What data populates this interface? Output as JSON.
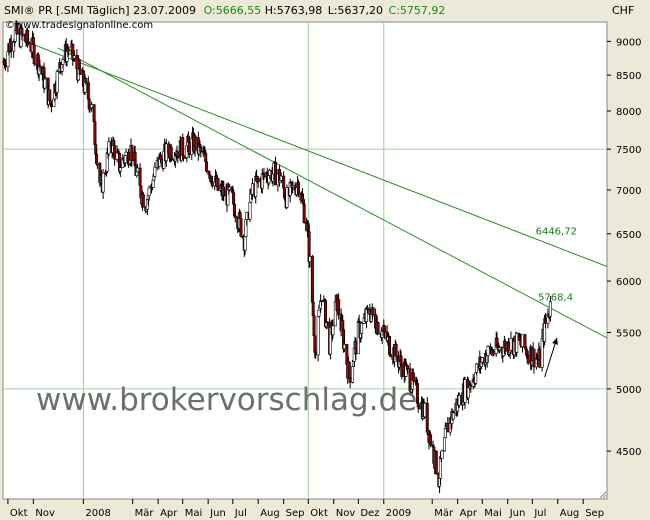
{
  "chart_data": {
    "type": "candlestick",
    "title": "SMI® PR [.SMI  Täglich] 23.07.2009",
    "header": {
      "instrument": "SMI® PR [.SMI  Täglich] 23.07.2009",
      "open": "O:5666,55",
      "high": "H:5763,98",
      "low": "L:5637,20",
      "close": "C:5757,92",
      "source": "©www.tradesignalonline.com"
    },
    "currency": "CHF",
    "y_scale": "log",
    "ylim": [
      4150,
      9300
    ],
    "y_ticks": [
      {
        "v": 9000,
        "label": "9000"
      },
      {
        "v": 8500,
        "label": "8500"
      },
      {
        "v": 8000,
        "label": "8000"
      },
      {
        "v": 7500,
        "label": "7500"
      },
      {
        "v": 7000,
        "label": "7000"
      },
      {
        "v": 6500,
        "label": "6500"
      },
      {
        "v": 6000,
        "label": "6000"
      },
      {
        "v": 5500,
        "label": "5500"
      },
      {
        "v": 5000,
        "label": "5000"
      },
      {
        "v": 4500,
        "label": "4500"
      }
    ],
    "x_range": [
      "2007-09-25",
      "2009-09-30"
    ],
    "x_ticks": [
      {
        "d": "2007-10-01",
        "label": "Okt"
      },
      {
        "d": "2007-11-01",
        "label": "Nov"
      },
      {
        "d": "2008-01-01",
        "label": "2008"
      },
      {
        "d": "2008-03-01",
        "label": "Mär"
      },
      {
        "d": "2008-04-01",
        "label": "Apr"
      },
      {
        "d": "2008-05-01",
        "label": "Mai"
      },
      {
        "d": "2008-06-01",
        "label": "Jun"
      },
      {
        "d": "2008-07-01",
        "label": "Jul"
      },
      {
        "d": "2008-08-01",
        "label": "Aug"
      },
      {
        "d": "2008-09-01",
        "label": "Sep"
      },
      {
        "d": "2008-10-01",
        "label": "Okt"
      },
      {
        "d": "2008-11-01",
        "label": "Nov"
      },
      {
        "d": "2008-12-01",
        "label": "Dez"
      },
      {
        "d": "2009-01-01",
        "label": "2009"
      },
      {
        "d": "2009-03-01",
        "label": "Mär"
      },
      {
        "d": "2009-04-01",
        "label": "Apr"
      },
      {
        "d": "2009-05-01",
        "label": "Mai"
      },
      {
        "d": "2009-06-01",
        "label": "Jun"
      },
      {
        "d": "2009-07-01",
        "label": "Jul"
      },
      {
        "d": "2009-08-01",
        "label": "Aug"
      },
      {
        "d": "2009-09-01",
        "label": "Sep"
      }
    ],
    "v_gridlines": [
      "2008-01-01",
      "2008-10-01",
      "2009-01-01"
    ],
    "h_gridlines": [
      7500,
      5000
    ],
    "price_path": [
      [
        "2007-09-26",
        8700
      ],
      [
        "2007-10-08",
        9120
      ],
      [
        "2007-10-20",
        9050
      ],
      [
        "2007-10-29",
        8950
      ],
      [
        "2007-11-10",
        8600
      ],
      [
        "2007-11-22",
        8100
      ],
      [
        "2007-12-05",
        8700
      ],
      [
        "2007-12-14",
        8900
      ],
      [
        "2007-12-28",
        8500
      ],
      [
        "2008-01-10",
        8100
      ],
      [
        "2008-01-22",
        7000
      ],
      [
        "2008-02-04",
        7600
      ],
      [
        "2008-02-14",
        7300
      ],
      [
        "2008-02-28",
        7500
      ],
      [
        "2008-03-10",
        7000
      ],
      [
        "2008-03-17",
        6850
      ],
      [
        "2008-04-02",
        7350
      ],
      [
        "2008-04-16",
        7500
      ],
      [
        "2008-05-02",
        7500
      ],
      [
        "2008-05-15",
        7580
      ],
      [
        "2008-05-29",
        7350
      ],
      [
        "2008-06-13",
        7000
      ],
      [
        "2008-06-30",
        6900
      ],
      [
        "2008-07-15",
        6450
      ],
      [
        "2008-07-25",
        7000
      ],
      [
        "2008-08-12",
        7200
      ],
      [
        "2008-08-25",
        7200
      ],
      [
        "2008-09-05",
        6900
      ],
      [
        "2008-09-19",
        7100
      ],
      [
        "2008-09-30",
        6550
      ],
      [
        "2008-10-10",
        5300
      ],
      [
        "2008-10-17",
        5900
      ],
      [
        "2008-10-27",
        5400
      ],
      [
        "2008-11-05",
        5800
      ],
      [
        "2008-11-20",
        5100
      ],
      [
        "2008-12-01",
        5500
      ],
      [
        "2008-12-15",
        5700
      ],
      [
        "2008-12-31",
        5500
      ],
      [
        "2009-01-15",
        5300
      ],
      [
        "2009-02-01",
        5100
      ],
      [
        "2009-02-20",
        4800
      ],
      [
        "2009-03-09",
        4300
      ],
      [
        "2009-03-20",
        4700
      ],
      [
        "2009-04-06",
        4950
      ],
      [
        "2009-04-20",
        5100
      ],
      [
        "2009-05-05",
        5300
      ],
      [
        "2009-05-20",
        5350
      ],
      [
        "2009-06-05",
        5400
      ],
      [
        "2009-06-15",
        5400
      ],
      [
        "2009-06-30",
        5300
      ],
      [
        "2009-07-10",
        5250
      ],
      [
        "2009-07-16",
        5550
      ],
      [
        "2009-07-23",
        5757.92
      ]
    ],
    "trend_lines": [
      {
        "points": [
          [
            "2007-10-22",
            9000
          ],
          [
            "2009-09-30",
            6150
          ]
        ],
        "label": "6446,72",
        "label_at": [
          "2009-07-05",
          6446.72
        ]
      },
      {
        "points": [
          [
            "2007-12-01",
            8900
          ],
          [
            "2009-09-30",
            5450
          ]
        ],
        "label": "5768,4",
        "label_at": [
          "2009-07-08",
          5768.4
        ]
      }
    ],
    "arrow": {
      "from": [
        "2009-07-16",
        5100
      ],
      "to": [
        "2009-07-31",
        5450
      ]
    },
    "watermark": "www.brokervorschlag.de"
  }
}
